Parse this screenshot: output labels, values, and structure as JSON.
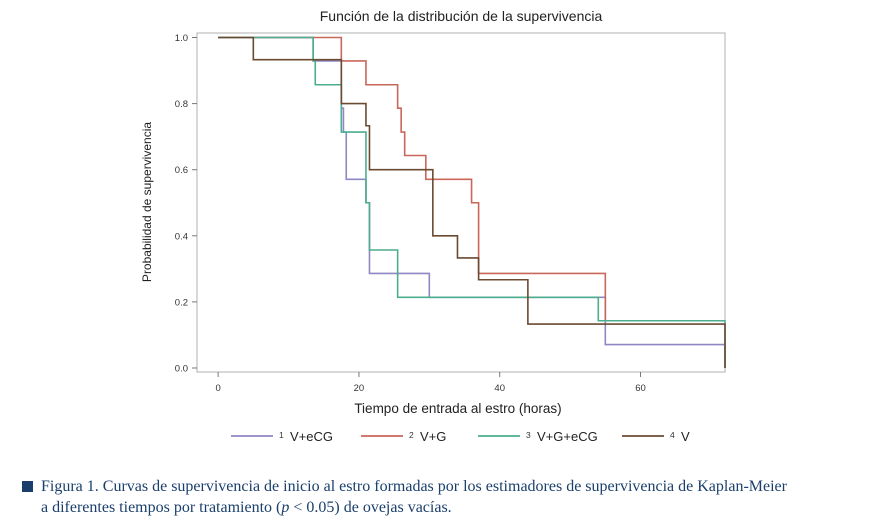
{
  "chart_data": {
    "type": "line",
    "title": "Función de la distribución de la supervivencia",
    "xlabel": "Tiempo de entrada al estro (horas)",
    "ylabel": "Probabilidad de supervivencia",
    "xlim": [
      -3,
      72
    ],
    "ylim": [
      0,
      1
    ],
    "xticks": [
      "0",
      "20",
      "40",
      "60"
    ],
    "xtick_values": [
      0,
      20,
      40,
      60
    ],
    "yticks": [
      "0.0",
      "0.2",
      "0.4",
      "0.6",
      "0.8",
      "1.0"
    ],
    "ytick_values": [
      0,
      0.2,
      0.4,
      0.6,
      0.8,
      1.0
    ],
    "legend_position": "bottom",
    "series": [
      {
        "name": "V+eCG",
        "legend_number": "1",
        "color": "#8f87c4",
        "x": [
          0,
          13.5,
          17.5,
          17.8,
          18.2,
          21,
          21.5,
          30,
          55,
          72
        ],
        "y": [
          1.0,
          0.929,
          0.786,
          0.714,
          0.571,
          0.5,
          0.286,
          0.214,
          0.071,
          0.0
        ]
      },
      {
        "name": "V+G",
        "legend_number": "2",
        "color": "#c9675a",
        "x": [
          0,
          17.5,
          21,
          25.5,
          26,
          26.5,
          27,
          29.5,
          30,
          36,
          37,
          54,
          55
        ],
        "y": [
          1.0,
          0.929,
          0.857,
          0.786,
          0.714,
          0.643,
          0.643,
          0.571,
          0.571,
          0.5,
          0.286,
          0.286,
          0.143
        ]
      },
      {
        "name": "V+G+eCG",
        "legend_number": "3",
        "color": "#4cae8e",
        "x": [
          0,
          13.5,
          13.8,
          17.5,
          21,
          21.5,
          25.5,
          54,
          72
        ],
        "y": [
          1.0,
          0.929,
          0.857,
          0.714,
          0.5,
          0.357,
          0.214,
          0.143,
          0.0
        ]
      },
      {
        "name": "V",
        "legend_number": "4",
        "color": "#6b4a32",
        "x": [
          0,
          5,
          16.5,
          17.5,
          21,
          21.5,
          29.5,
          30.5,
          34,
          36.5,
          37,
          44,
          54,
          72
        ],
        "y": [
          1.0,
          0.933,
          0.933,
          0.8,
          0.733,
          0.6,
          0.6,
          0.4,
          0.333,
          0.333,
          0.267,
          0.133,
          0.133,
          0.0
        ]
      }
    ]
  },
  "caption": {
    "line1": "Figura 1. Curvas de supervivencia de inicio al estro formadas por los estimadores de supervivencia de Kaplan-Meier",
    "line2_before": "a diferentes tiempos por tratamiento (",
    "line2_p": "p",
    "line2_after": " < 0.05) de ovejas vacías."
  }
}
